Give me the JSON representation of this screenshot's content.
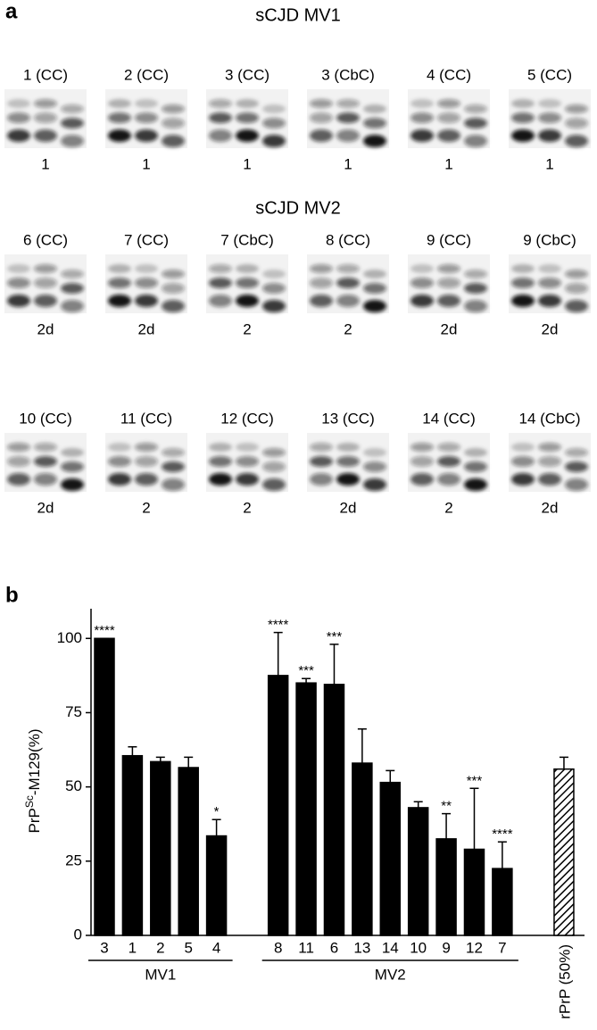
{
  "panel_a": {
    "label": "a",
    "sections": [
      {
        "title": "sCJD MV1",
        "rows": [
          [
            {
              "label": "1 (CC)",
              "type": "1"
            },
            {
              "label": "2 (CC)",
              "type": "1"
            },
            {
              "label": "3 (CC)",
              "type": "1"
            },
            {
              "label": "3 (CbC)",
              "type": "1"
            },
            {
              "label": "4 (CC)",
              "type": "1"
            },
            {
              "label": "5 (CC)",
              "type": "1"
            }
          ]
        ]
      },
      {
        "title": "sCJD MV2",
        "rows": [
          [
            {
              "label": "6 (CC)",
              "type": "2d"
            },
            {
              "label": "7 (CC)",
              "type": "2d"
            },
            {
              "label": "7 (CbC)",
              "type": "2"
            },
            {
              "label": "8 (CC)",
              "type": "2"
            },
            {
              "label": "9 (CC)",
              "type": "2d"
            },
            {
              "label": "9 (CbC)",
              "type": "2d"
            }
          ],
          [
            {
              "label": "10 (CC)",
              "type": "2d"
            },
            {
              "label": "11 (CC)",
              "type": "2"
            },
            {
              "label": "12 (CC)",
              "type": "2"
            },
            {
              "label": "13 (CC)",
              "type": "2d"
            },
            {
              "label": "14 (CC)",
              "type": "2"
            },
            {
              "label": "14 (CbC)",
              "type": "2d"
            }
          ]
        ]
      }
    ]
  },
  "chart_data": {
    "type": "bar",
    "panel_label": "b",
    "y_label": {
      "text": "PrP",
      "superscript": "Sc",
      "rest": "-M129(%)"
    },
    "categories": [
      "3",
      "1",
      "2",
      "5",
      "4",
      "8",
      "11",
      "6",
      "13",
      "14",
      "10",
      "9",
      "12",
      "7",
      "rPrP (50%)"
    ],
    "values": [
      100,
      60.5,
      58.5,
      56.5,
      33.5,
      87.5,
      85,
      84.5,
      58,
      51.5,
      43,
      32.5,
      29,
      22.5,
      56
    ],
    "errors": [
      0,
      3,
      1.5,
      3.5,
      5.5,
      14.5,
      1.5,
      13.5,
      11.5,
      4,
      2,
      8.5,
      20.5,
      9,
      4
    ],
    "annotations": [
      "****",
      null,
      null,
      null,
      "*",
      "****",
      "***",
      "***",
      null,
      null,
      null,
      "**",
      "***",
      "****",
      null
    ],
    "hatched": [
      false,
      false,
      false,
      false,
      false,
      false,
      false,
      false,
      false,
      false,
      false,
      false,
      false,
      false,
      true
    ],
    "groups": [
      {
        "label": "MV1",
        "count": 5
      },
      {
        "label": "MV2",
        "count": 9
      }
    ],
    "color": "#000000",
    "ylim": [
      0,
      110
    ],
    "yticks": [
      0,
      25,
      50,
      75,
      100
    ]
  }
}
